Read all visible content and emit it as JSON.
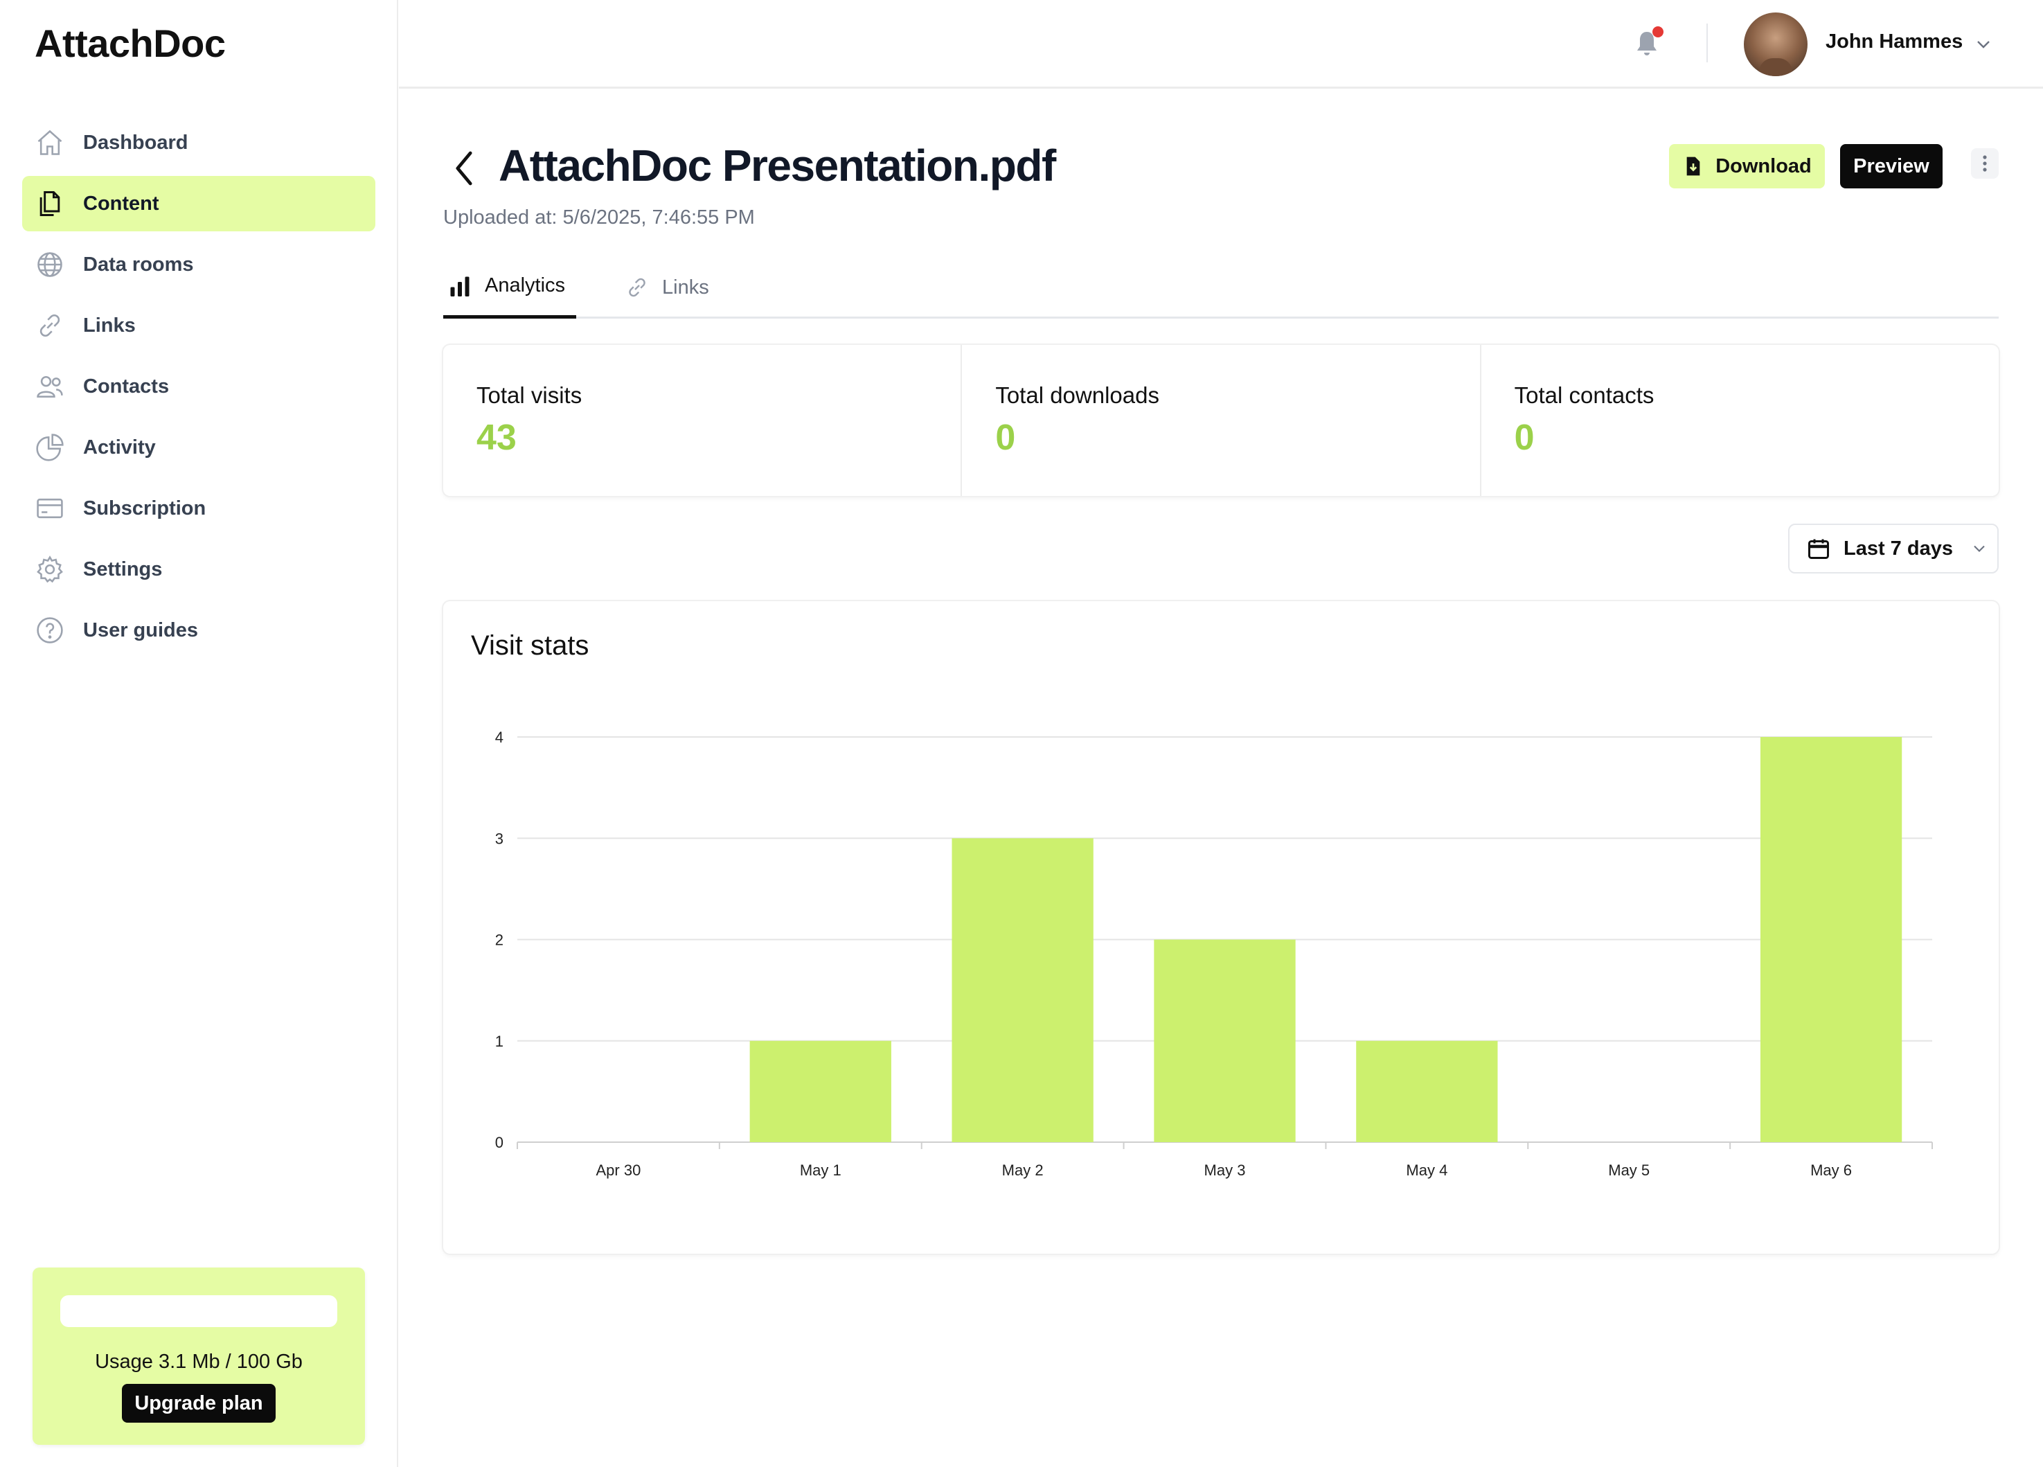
{
  "app": {
    "name": "AttachDoc"
  },
  "sidebar": {
    "items": [
      {
        "label": "Dashboard",
        "icon": "home-icon",
        "active": false
      },
      {
        "label": "Content",
        "icon": "documents-icon",
        "active": true
      },
      {
        "label": "Data rooms",
        "icon": "globe-icon",
        "active": false
      },
      {
        "label": "Links",
        "icon": "link-icon",
        "active": false
      },
      {
        "label": "Contacts",
        "icon": "users-icon",
        "active": false
      },
      {
        "label": "Activity",
        "icon": "pie-chart-icon",
        "active": false
      },
      {
        "label": "Subscription",
        "icon": "credit-card-icon",
        "active": false
      },
      {
        "label": "Settings",
        "icon": "gear-icon",
        "active": false
      },
      {
        "label": "User guides",
        "icon": "question-circle-icon",
        "active": false
      }
    ],
    "usage": {
      "text": "Usage 3.1 Mb / 100 Gb",
      "upgrade_label": "Upgrade plan"
    }
  },
  "topbar": {
    "user_name": "John Hammes",
    "notification_dot": true
  },
  "document": {
    "title": "AttachDoc Presentation.pdf",
    "uploaded": "Uploaded at: 5/6/2025, 7:46:55 PM",
    "download_label": "Download",
    "preview_label": "Preview"
  },
  "tabs": [
    {
      "label": "Analytics",
      "active": true,
      "icon": "bar-chart-icon"
    },
    {
      "label": "Links",
      "active": false,
      "icon": "link-icon"
    }
  ],
  "stats": [
    {
      "label": "Total visits",
      "value": "43"
    },
    {
      "label": "Total downloads",
      "value": "0"
    },
    {
      "label": "Total contacts",
      "value": "0"
    }
  ],
  "date_range": {
    "label": "Last 7 days"
  },
  "colors": {
    "accent": "#e5fca4",
    "bar": "#ccf06e",
    "stat_value": "#9bd14a",
    "dark": "#0b0b0b"
  },
  "chart_data": {
    "type": "bar",
    "title": "Visit stats",
    "categories": [
      "Apr 30",
      "May 1",
      "May 2",
      "May 3",
      "May 4",
      "May 5",
      "May 6"
    ],
    "values": [
      0,
      1,
      3,
      2,
      1,
      0,
      4
    ],
    "yticks": [
      0,
      1,
      2,
      3,
      4
    ],
    "ylim": [
      0,
      4
    ],
    "grid": true
  }
}
